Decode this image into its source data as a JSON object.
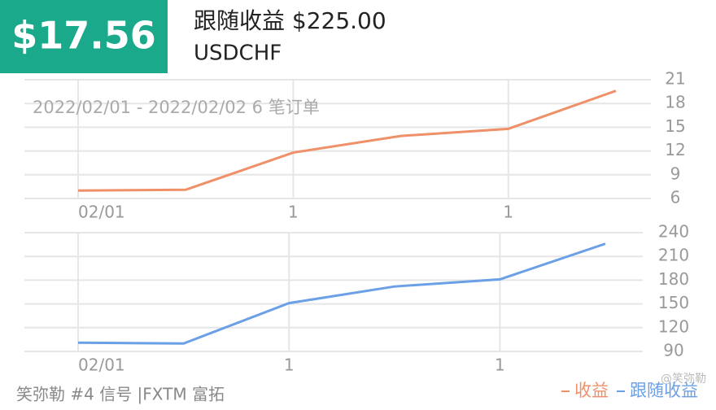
{
  "header": {
    "badge": "$17.56",
    "title": "跟随收益 $225.00",
    "symbol": "USDCHF"
  },
  "chart_data": [
    {
      "type": "line",
      "subtitle": "2022/02/01 - 2022/02/02 6 笔订单",
      "categories": [
        "02/01",
        null,
        "1",
        null,
        "1",
        null
      ],
      "series": [
        {
          "name": "收益",
          "color": "#ef9068",
          "values": [
            7.0,
            7.1,
            11.8,
            13.9,
            14.8,
            19.6
          ]
        }
      ],
      "ylim": [
        6,
        21
      ],
      "yticks": [
        6,
        9,
        12,
        15,
        18,
        21
      ],
      "grid": true
    },
    {
      "type": "line",
      "categories": [
        "02/01",
        null,
        "1",
        null,
        "1",
        null
      ],
      "series": [
        {
          "name": "跟随收益",
          "color": "#6b9fe6",
          "values": [
            101,
            100,
            151,
            172,
            181,
            226
          ]
        }
      ],
      "ylim": [
        90,
        240
      ],
      "yticks": [
        90,
        120,
        150,
        180,
        210,
        240
      ],
      "grid": true
    }
  ],
  "footer": {
    "source": "笑弥勒 #4 信号 |FXTM 富拓",
    "watermark": "@笑弥勒"
  }
}
